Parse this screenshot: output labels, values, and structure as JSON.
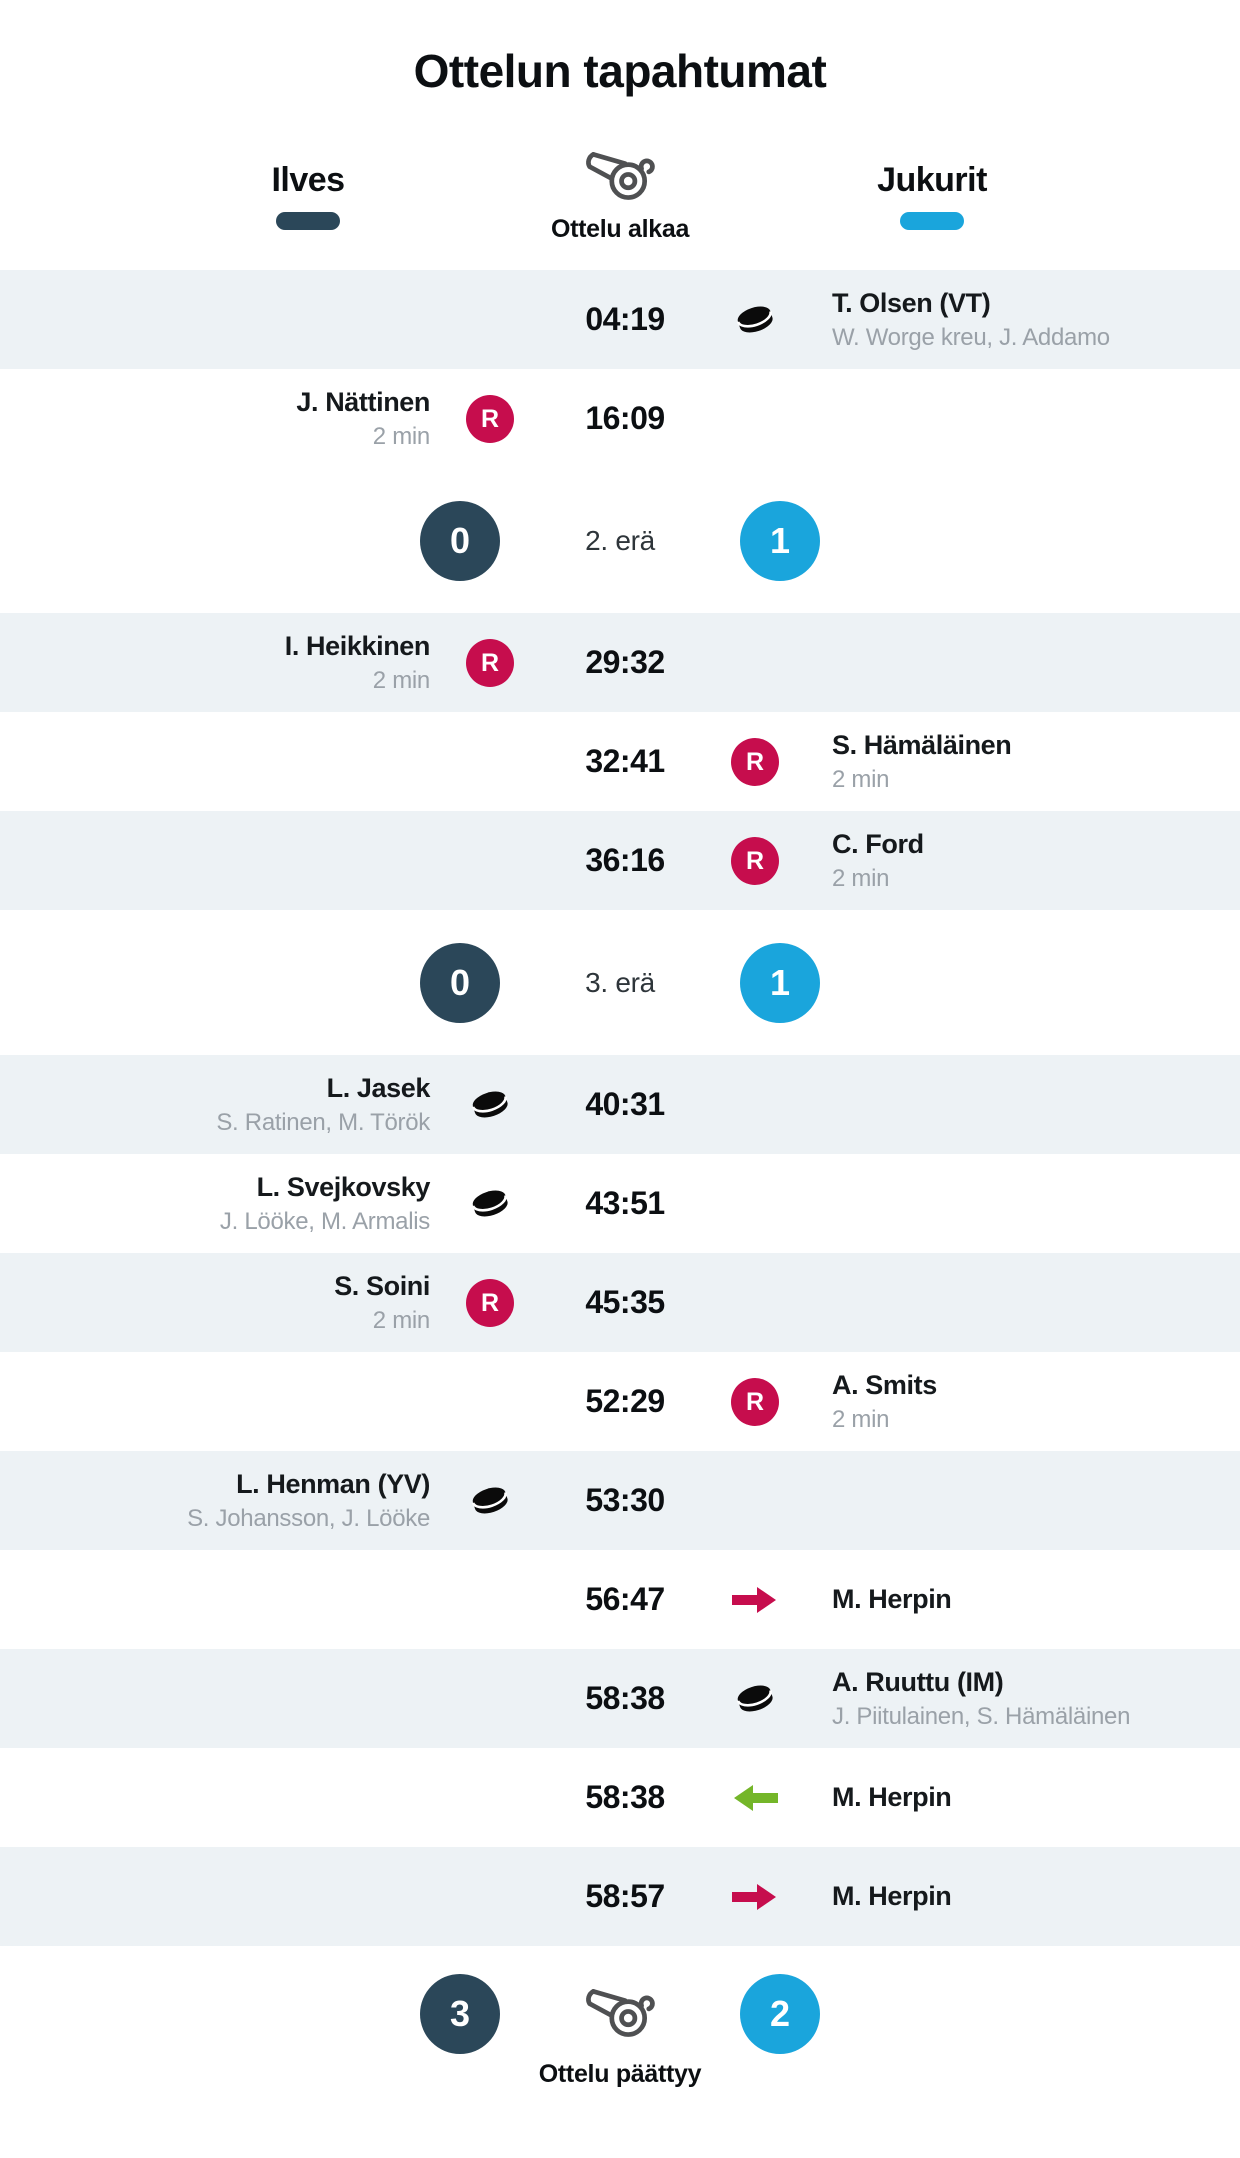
{
  "title": "Ottelun tapahtumat",
  "header": {
    "home_team": "Ilves",
    "away_team": "Jukurit",
    "status_label": "Ottelu alkaa",
    "home_color": "#2b4759",
    "away_color": "#1aa5dc"
  },
  "icons": {
    "penalty_letter": "R"
  },
  "events": [
    {
      "type": "event",
      "side": "away",
      "time": "04:19",
      "icon": "goal",
      "name": "T. Olsen (VT)",
      "detail": "W. Worge kreu, J. Addamo"
    },
    {
      "type": "event",
      "side": "home",
      "time": "16:09",
      "icon": "penalty",
      "name": "J. Nättinen",
      "detail": "2 min"
    },
    {
      "type": "period",
      "label": "2. erä",
      "home_score": "0",
      "away_score": "1"
    },
    {
      "type": "event",
      "side": "home",
      "time": "29:32",
      "icon": "penalty",
      "name": "I. Heikkinen",
      "detail": "2 min"
    },
    {
      "type": "event",
      "side": "away",
      "time": "32:41",
      "icon": "penalty",
      "name": "S. Hämäläinen",
      "detail": "2 min"
    },
    {
      "type": "event",
      "side": "away",
      "time": "36:16",
      "icon": "penalty",
      "name": "C. Ford",
      "detail": "2 min"
    },
    {
      "type": "period",
      "label": "3. erä",
      "home_score": "0",
      "away_score": "1"
    },
    {
      "type": "event",
      "side": "home",
      "time": "40:31",
      "icon": "goal",
      "name": "L. Jasek",
      "detail": "S. Ratinen, M. Török"
    },
    {
      "type": "event",
      "side": "home",
      "time": "43:51",
      "icon": "goal",
      "name": "L. Svejkovsky",
      "detail": "J. Lööke, M. Armalis"
    },
    {
      "type": "event",
      "side": "home",
      "time": "45:35",
      "icon": "penalty",
      "name": "S. Soini",
      "detail": "2 min"
    },
    {
      "type": "event",
      "side": "away",
      "time": "52:29",
      "icon": "penalty",
      "name": "A. Smits",
      "detail": "2 min"
    },
    {
      "type": "event",
      "side": "home",
      "time": "53:30",
      "icon": "goal",
      "name": "L. Henman (YV)",
      "detail": "S. Johansson, J. Lööke"
    },
    {
      "type": "event",
      "side": "away",
      "time": "56:47",
      "icon": "player-out",
      "name": "M. Herpin"
    },
    {
      "type": "event",
      "side": "away",
      "time": "58:38",
      "icon": "goal",
      "name": "A. Ruuttu (IM)",
      "detail": "J. Piitulainen, S. Hämäläinen"
    },
    {
      "type": "event",
      "side": "away",
      "time": "58:38",
      "icon": "player-in",
      "name": "M. Herpin"
    },
    {
      "type": "event",
      "side": "away",
      "time": "58:57",
      "icon": "player-out",
      "name": "M. Herpin"
    }
  ],
  "footer": {
    "home_score": "3",
    "away_score": "2",
    "status_label": "Ottelu päättyy"
  }
}
